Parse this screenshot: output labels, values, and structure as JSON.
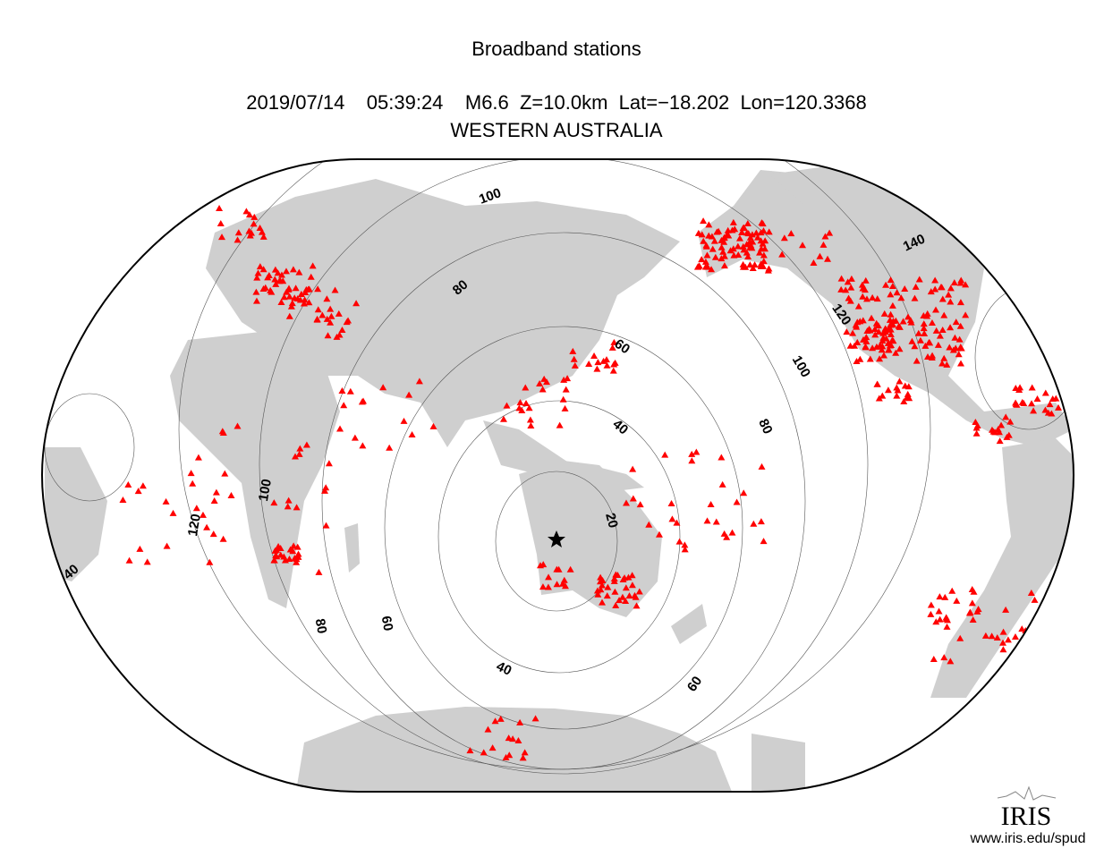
{
  "title": "Broadband stations",
  "event": "2019/07/14    05:39:24    M6.6  Z=10.0km  Lat=−18.202  Lon=120.3368",
  "region": "WESTERN AUSTRALIA",
  "distance_labels": [
    100,
    80,
    60,
    40,
    20,
    120,
    100,
    80,
    100,
    120,
    40,
    80,
    60,
    40,
    60,
    140
  ],
  "logo": "IRIS",
  "url": "www.iris.edu/spud"
}
